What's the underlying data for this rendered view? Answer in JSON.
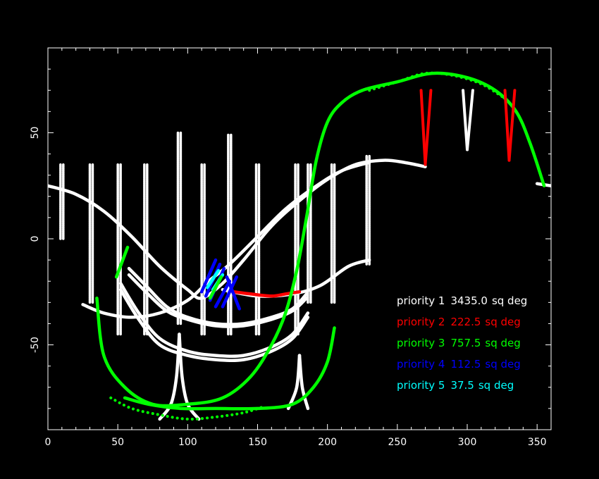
{
  "chart_data": {
    "type": "line",
    "title": "",
    "xlabel": "",
    "ylabel": "",
    "xlim": [
      0,
      360
    ],
    "ylim": [
      -90,
      90
    ],
    "xticks": [
      {
        "value": 0,
        "label": "0"
      },
      {
        "value": 50,
        "label": "50"
      },
      {
        "value": 100,
        "label": "100"
      },
      {
        "value": 150,
        "label": "150"
      },
      {
        "value": 200,
        "label": "200"
      },
      {
        "value": 250,
        "label": "250"
      },
      {
        "value": 300,
        "label": "300"
      },
      {
        "value": 350,
        "label": "350"
      }
    ],
    "yticks": [
      {
        "value": 50,
        "label": "50"
      },
      {
        "value": 0,
        "label": "0"
      },
      {
        "value": -50,
        "label": "-50"
      }
    ],
    "colors": {
      "priority1": "#ffffff",
      "priority2": "#ff0000",
      "priority3": "#00ff00",
      "priority4": "#0000ff",
      "priority5": "#00ffff"
    },
    "legend": [
      {
        "label": "priority 1",
        "area": "3435.0",
        "unit": "sq deg",
        "color": "#ffffff"
      },
      {
        "label": "priority 2",
        "area": "222.5",
        "unit": "sq deg",
        "color": "#ff0000"
      },
      {
        "label": "priority 3",
        "area": "757.5",
        "unit": "sq deg",
        "color": "#00ff00"
      },
      {
        "label": "priority 4",
        "area": "112.5",
        "unit": "sq deg",
        "color": "#0000ff"
      },
      {
        "label": "priority 5",
        "area": "37.5",
        "unit": "sq deg",
        "color": "#00ffff"
      }
    ],
    "series": [
      {
        "name": "white-curve-a",
        "priority": 1,
        "style": "solid",
        "points": [
          [
            0,
            25
          ],
          [
            20,
            21
          ],
          [
            40,
            13
          ],
          [
            60,
            1
          ],
          [
            80,
            -13
          ],
          [
            100,
            -24
          ],
          [
            110,
            -28
          ],
          [
            125,
            -21
          ],
          [
            140,
            -10
          ],
          [
            160,
            6
          ],
          [
            180,
            18
          ],
          [
            200,
            28
          ],
          [
            220,
            35
          ],
          [
            240,
            37
          ],
          [
            255,
            36
          ],
          [
            270,
            34
          ]
        ]
      },
      {
        "name": "white-curve-b",
        "priority": 1,
        "style": "solid",
        "points": [
          [
            25,
            -31
          ],
          [
            40,
            -35
          ],
          [
            60,
            -37
          ],
          [
            80,
            -35
          ],
          [
            100,
            -29
          ],
          [
            115,
            -20
          ],
          [
            130,
            -12
          ],
          [
            150,
            1
          ],
          [
            170,
            14
          ],
          [
            190,
            24
          ],
          [
            210,
            32
          ],
          [
            230,
            36
          ]
        ]
      },
      {
        "name": "white-curve-c",
        "priority": 1,
        "style": "solid",
        "points": [
          [
            125,
            -24
          ],
          [
            150,
            -27
          ],
          [
            175,
            -26
          ],
          [
            195,
            -22
          ],
          [
            215,
            -13
          ],
          [
            230,
            -10
          ]
        ]
      },
      {
        "name": "white-curve-right",
        "priority": 1,
        "style": "solid",
        "points": [
          [
            350,
            26
          ],
          [
            360,
            25
          ]
        ]
      },
      {
        "name": "white-ucurve-1",
        "priority": 1,
        "style": "solid",
        "points": [
          [
            58,
            -14
          ],
          [
            70,
            -22
          ],
          [
            85,
            -32
          ],
          [
            100,
            -37
          ],
          [
            120,
            -40
          ],
          [
            140,
            -40
          ],
          [
            160,
            -37
          ],
          [
            175,
            -33
          ],
          [
            185,
            -26
          ]
        ]
      },
      {
        "name": "white-ucurve-2",
        "priority": 1,
        "style": "solid",
        "points": [
          [
            58,
            -17
          ],
          [
            70,
            -25
          ],
          [
            85,
            -34
          ],
          [
            100,
            -38
          ],
          [
            120,
            -41
          ],
          [
            140,
            -41
          ],
          [
            160,
            -38
          ],
          [
            175,
            -34
          ],
          [
            185,
            -28
          ]
        ]
      },
      {
        "name": "white-ucurve-3",
        "priority": 1,
        "style": "solid",
        "points": [
          [
            52,
            -21
          ],
          [
            65,
            -35
          ],
          [
            80,
            -47
          ],
          [
            100,
            -53
          ],
          [
            120,
            -55
          ],
          [
            140,
            -55
          ],
          [
            160,
            -51
          ],
          [
            175,
            -45
          ],
          [
            186,
            -35
          ]
        ]
      },
      {
        "name": "white-ucurve-4",
        "priority": 1,
        "style": "solid",
        "points": [
          [
            52,
            -24
          ],
          [
            65,
            -38
          ],
          [
            80,
            -50
          ],
          [
            100,
            -55
          ],
          [
            120,
            -57
          ],
          [
            140,
            -57
          ],
          [
            160,
            -53
          ],
          [
            175,
            -47
          ],
          [
            186,
            -37
          ]
        ]
      },
      {
        "name": "white-cusp-left-a",
        "priority": 1,
        "style": "solid",
        "points": [
          [
            80,
            -85
          ],
          [
            88,
            -78
          ],
          [
            92,
            -65
          ],
          [
            94,
            -45
          ]
        ]
      },
      {
        "name": "white-cusp-left-b",
        "priority": 1,
        "style": "solid",
        "points": [
          [
            108,
            -85
          ],
          [
            100,
            -78
          ],
          [
            96,
            -65
          ],
          [
            94,
            -45
          ]
        ]
      },
      {
        "name": "white-cusp-right-a",
        "priority": 1,
        "style": "solid",
        "points": [
          [
            172,
            -80
          ],
          [
            178,
            -70
          ],
          [
            180,
            -55
          ]
        ]
      },
      {
        "name": "white-cusp-right-b",
        "priority": 1,
        "style": "solid",
        "points": [
          [
            186,
            -80
          ],
          [
            182,
            -70
          ],
          [
            180,
            -55
          ]
        ]
      },
      {
        "name": "red-strip",
        "priority": 2,
        "style": "solid",
        "points": [
          [
            133,
            -25
          ],
          [
            145,
            -26
          ],
          [
            160,
            -27
          ],
          [
            170,
            -26
          ],
          [
            180,
            -25
          ]
        ]
      },
      {
        "name": "green-scurve",
        "priority": 3,
        "style": "solid",
        "points": [
          [
            35,
            -28
          ],
          [
            40,
            -55
          ],
          [
            55,
            -70
          ],
          [
            75,
            -78
          ],
          [
            100,
            -78
          ],
          [
            125,
            -75
          ],
          [
            145,
            -65
          ],
          [
            160,
            -50
          ],
          [
            170,
            -35
          ],
          [
            178,
            -15
          ],
          [
            185,
            10
          ],
          [
            192,
            37
          ],
          [
            200,
            55
          ],
          [
            210,
            64
          ],
          [
            225,
            70
          ],
          [
            250,
            74
          ],
          [
            275,
            78
          ],
          [
            300,
            76
          ],
          [
            320,
            70
          ],
          [
            335,
            60
          ],
          [
            345,
            45
          ],
          [
            355,
            25
          ]
        ]
      },
      {
        "name": "green-lower-curve",
        "priority": 3,
        "style": "solid",
        "points": [
          [
            205,
            -42
          ],
          [
            200,
            -58
          ],
          [
            190,
            -70
          ],
          [
            175,
            -78
          ],
          [
            150,
            -80
          ],
          [
            120,
            -80
          ],
          [
            95,
            -80
          ],
          [
            72,
            -78
          ],
          [
            55,
            -75
          ]
        ]
      },
      {
        "name": "green-dotted-lower",
        "priority": 3,
        "style": "dotted",
        "points": [
          [
            45,
            -75
          ],
          [
            60,
            -80
          ],
          [
            80,
            -83
          ],
          [
            100,
            -85
          ],
          [
            120,
            -84
          ],
          [
            140,
            -82
          ],
          [
            155,
            -79
          ]
        ]
      },
      {
        "name": "green-dotted-top",
        "priority": 3,
        "style": "dotted",
        "points": [
          [
            230,
            70
          ],
          [
            250,
            74
          ],
          [
            270,
            78
          ],
          [
            290,
            77
          ],
          [
            310,
            73
          ],
          [
            325,
            67
          ]
        ]
      },
      {
        "name": "green-short-segment",
        "priority": 3,
        "style": "solid",
        "points": [
          [
            49,
            -18
          ],
          [
            57,
            -4
          ]
        ]
      }
    ],
    "verticals": [
      {
        "x": 9,
        "y0": 0,
        "y1": 35,
        "priority": 1
      },
      {
        "x": 11,
        "y0": 0,
        "y1": 35,
        "priority": 1
      },
      {
        "x": 30,
        "y0": -30,
        "y1": 35,
        "priority": 1
      },
      {
        "x": 32,
        "y0": -30,
        "y1": 35,
        "priority": 1
      },
      {
        "x": 50,
        "y0": -45,
        "y1": 35,
        "priority": 1
      },
      {
        "x": 52,
        "y0": -45,
        "y1": 35,
        "priority": 1
      },
      {
        "x": 69,
        "y0": -45,
        "y1": 35,
        "priority": 1
      },
      {
        "x": 71,
        "y0": -45,
        "y1": 35,
        "priority": 1
      },
      {
        "x": 93,
        "y0": -40,
        "y1": 50,
        "priority": 1
      },
      {
        "x": 95,
        "y0": -40,
        "y1": 50,
        "priority": 1
      },
      {
        "x": 110,
        "y0": -45,
        "y1": 35,
        "priority": 1
      },
      {
        "x": 112,
        "y0": -45,
        "y1": 35,
        "priority": 1
      },
      {
        "x": 129,
        "y0": -45,
        "y1": 49,
        "priority": 1
      },
      {
        "x": 131,
        "y0": -45,
        "y1": 49,
        "priority": 1
      },
      {
        "x": 149,
        "y0": -45,
        "y1": 35,
        "priority": 1
      },
      {
        "x": 151,
        "y0": -45,
        "y1": 35,
        "priority": 1
      },
      {
        "x": 177,
        "y0": -45,
        "y1": 35,
        "priority": 1
      },
      {
        "x": 179,
        "y0": -45,
        "y1": 35,
        "priority": 1
      },
      {
        "x": 186,
        "y0": -30,
        "y1": 35,
        "priority": 1
      },
      {
        "x": 188,
        "y0": -30,
        "y1": 35,
        "priority": 1
      },
      {
        "x": 203,
        "y0": -30,
        "y1": 35,
        "priority": 1
      },
      {
        "x": 205,
        "y0": -30,
        "y1": 35,
        "priority": 1
      },
      {
        "x": 228,
        "y0": -12,
        "y1": 39,
        "priority": 1
      },
      {
        "x": 230,
        "y0": -12,
        "y1": 39,
        "priority": 1
      }
    ],
    "v_shapes": [
      {
        "x_left": 267,
        "x_right": 274,
        "x_tip": 270,
        "y_top": 70,
        "y_tip": 35,
        "priority": 2
      },
      {
        "x_left": 297,
        "x_right": 304,
        "x_tip": 300,
        "y_top": 70,
        "y_tip": 42,
        "priority": 1
      },
      {
        "x_left": 327,
        "x_right": 334,
        "x_tip": 330,
        "y_top": 70,
        "y_tip": 37,
        "priority": 2
      }
    ],
    "cross_cluster": [
      {
        "x0": 110,
        "y0": -25,
        "x1": 120,
        "y1": -10,
        "priority": 4
      },
      {
        "x0": 113,
        "y0": -27,
        "x1": 123,
        "y1": -12,
        "priority": 4
      },
      {
        "x0": 116,
        "y0": -29,
        "x1": 126,
        "y1": -14,
        "priority": 4
      },
      {
        "x0": 125,
        "y0": -32,
        "x1": 135,
        "y1": -18,
        "priority": 4
      },
      {
        "x0": 120,
        "y0": -32,
        "x1": 130,
        "y1": -20,
        "priority": 4
      },
      {
        "x0": 128,
        "y0": -18,
        "x1": 137,
        "y1": -33,
        "priority": 4
      },
      {
        "x0": 114,
        "y0": -23,
        "x1": 122,
        "y1": -15,
        "priority": 5
      },
      {
        "x0": 118,
        "y0": -24,
        "x1": 125,
        "y1": -17,
        "priority": 5
      },
      {
        "x0": 116,
        "y0": -28,
        "x1": 124,
        "y1": -18,
        "priority": 3
      }
    ]
  }
}
